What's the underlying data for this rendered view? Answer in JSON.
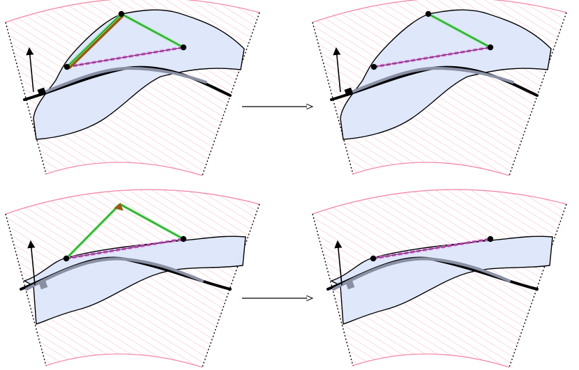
{
  "colors": {
    "hatch": "#f5a3b4",
    "band_edge": "#f28aa8",
    "region_fill": "#dde6fb",
    "outline": "#000000",
    "gray_curve": "#8a90a4",
    "black_curve": "#000000",
    "green": "#67e86a",
    "brown": "#9a5a10",
    "magenta_dashed": "#e070d8",
    "vertex": "#000000",
    "vector": "#000000"
  },
  "panels": [
    {
      "id": "top-left",
      "has_green_edge_1": true,
      "has_green_edge_2": true,
      "has_brown_edge": true,
      "has_top_vertex": true,
      "top_vertex_is_arrow": false,
      "gray_anchor": false
    },
    {
      "id": "top-right",
      "has_green_edge_1": false,
      "has_green_edge_2": true,
      "has_brown_edge": false,
      "has_top_vertex": true,
      "top_vertex_is_arrow": false,
      "gray_anchor": false
    },
    {
      "id": "bottom-left",
      "has_green_edge_1": true,
      "has_green_edge_2": true,
      "has_brown_edge": false,
      "has_top_vertex": true,
      "top_vertex_is_arrow": true,
      "gray_anchor": true
    },
    {
      "id": "bottom-right",
      "has_green_edge_1": false,
      "has_green_edge_2": false,
      "has_brown_edge": false,
      "has_top_vertex": false,
      "top_vertex_is_arrow": false,
      "gray_anchor": true
    }
  ],
  "transitions": [
    {
      "from": "top-left",
      "to": "top-right"
    },
    {
      "from": "bottom-left",
      "to": "bottom-right"
    }
  ]
}
